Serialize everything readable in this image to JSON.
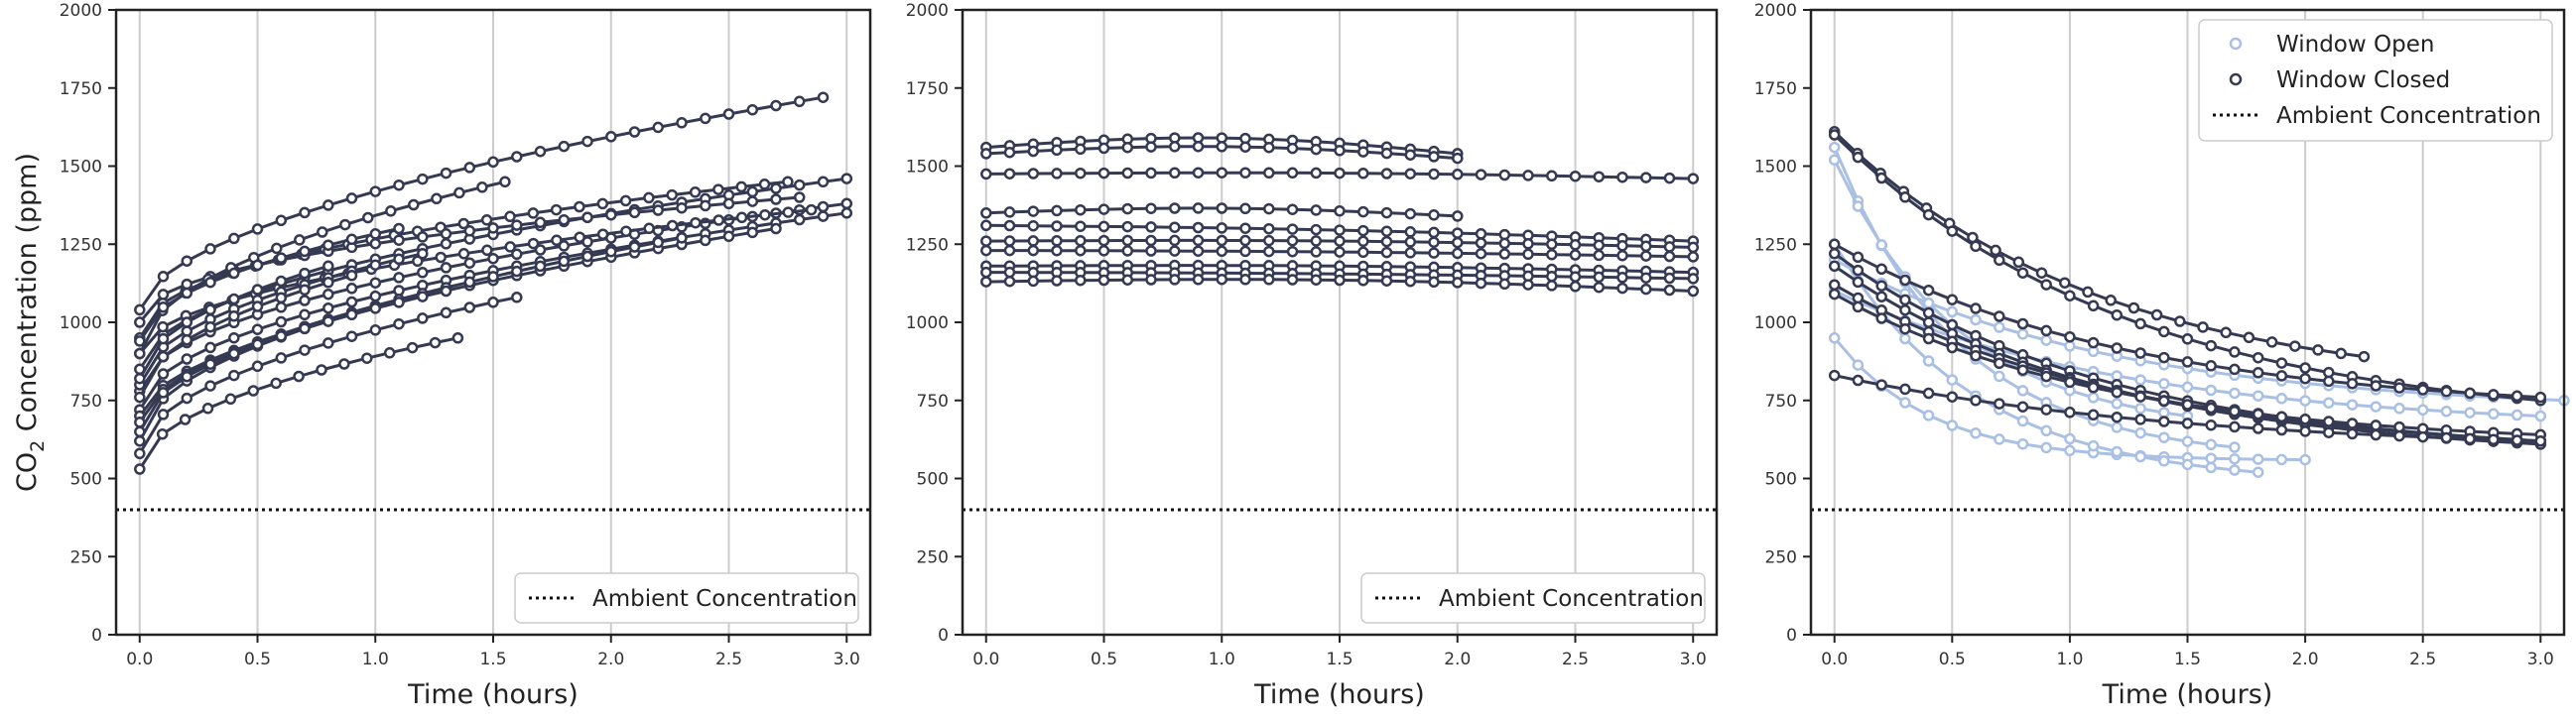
{
  "colors": {
    "closed": "#353a52",
    "open": "#a9c0e4",
    "ambient": "#111111",
    "grid": "#cccccc",
    "frame": "#222222"
  },
  "chart_data": [
    {
      "type": "line",
      "xlabel": "Time (hours)",
      "ylabel": "CO2 Concentration (ppm)",
      "ylabel_parts": {
        "pre": "CO",
        "sub": "2",
        "post": " Concentration (ppm)"
      },
      "xlim": [
        -0.1,
        3.1
      ],
      "ylim": [
        0,
        2000
      ],
      "xticks": [
        "0.0",
        "0.5",
        "1.0",
        "1.5",
        "2.0",
        "2.5",
        "3.0"
      ],
      "yticks": [
        "0",
        "250",
        "500",
        "750",
        "1000",
        "1250",
        "1500",
        "1750",
        "2000"
      ],
      "grid": "vertical",
      "ambient": 400,
      "legend": {
        "position": "lower-right",
        "entries": [
          {
            "label": "Ambient Concentration",
            "style": "dotted"
          }
        ]
      },
      "series": [
        {
          "group": "closed",
          "x0": 0,
          "dur": 2.9,
          "y0": 1040,
          "y1": 1720,
          "shape": 0.55
        },
        {
          "group": "closed",
          "x0": 0,
          "dur": 3.0,
          "y0": 850,
          "y1": 1460,
          "shape": 0.5
        },
        {
          "group": "closed",
          "x0": 0,
          "dur": 2.75,
          "y0": 950,
          "y1": 1450,
          "shape": 0.45
        },
        {
          "group": "closed",
          "x0": 0,
          "dur": 3.0,
          "y0": 780,
          "y1": 1380,
          "shape": 0.5
        },
        {
          "group": "closed",
          "x0": 0,
          "dur": 3.0,
          "y0": 720,
          "y1": 1350,
          "shape": 0.5
        },
        {
          "group": "closed",
          "x0": 0,
          "dur": 2.8,
          "y0": 1000,
          "y1": 1400,
          "shape": 0.45
        },
        {
          "group": "closed",
          "x0": 0,
          "dur": 2.85,
          "y0": 900,
          "y1": 1360,
          "shape": 0.5
        },
        {
          "group": "closed",
          "x0": 0,
          "dur": 2.7,
          "y0": 700,
          "y1": 1300,
          "shape": 0.55
        },
        {
          "group": "closed",
          "x0": 0,
          "dur": 2.3,
          "y0": 680,
          "y1": 1270,
          "shape": 0.55
        },
        {
          "group": "closed",
          "x0": 0,
          "dur": 1.55,
          "y0": 900,
          "y1": 1450,
          "shape": 0.5
        },
        {
          "group": "closed",
          "x0": 0,
          "dur": 1.6,
          "y0": 580,
          "y1": 1080,
          "shape": 0.5
        },
        {
          "group": "closed",
          "x0": 0,
          "dur": 1.35,
          "y0": 530,
          "y1": 950,
          "shape": 0.5
        },
        {
          "group": "closed",
          "x0": 0,
          "dur": 1.2,
          "y0": 800,
          "y1": 1220,
          "shape": 0.5
        },
        {
          "group": "closed",
          "x0": 0,
          "dur": 1.0,
          "y0": 620,
          "y1": 1050,
          "shape": 0.5
        },
        {
          "group": "closed",
          "x0": 0,
          "dur": 0.9,
          "y0": 760,
          "y1": 1150,
          "shape": 0.5
        },
        {
          "group": "closed",
          "x0": 0,
          "dur": 1.1,
          "y0": 940,
          "y1": 1300,
          "shape": 0.5
        },
        {
          "group": "closed",
          "x0": 0,
          "dur": 0.8,
          "y0": 820,
          "y1": 1180,
          "shape": 0.5
        },
        {
          "group": "closed",
          "x0": 0,
          "dur": 1.3,
          "y0": 650,
          "y1": 1100,
          "shape": 0.5
        }
      ]
    },
    {
      "type": "line",
      "xlabel": "Time (hours)",
      "ylabel": "",
      "xlim": [
        -0.1,
        3.1
      ],
      "ylim": [
        0,
        2000
      ],
      "xticks": [
        "0.0",
        "0.5",
        "1.0",
        "1.5",
        "2.0",
        "2.5",
        "3.0"
      ],
      "yticks": [
        "0",
        "250",
        "500",
        "750",
        "1000",
        "1250",
        "1500",
        "1750",
        "2000"
      ],
      "grid": "vertical",
      "ambient": 400,
      "legend": {
        "position": "lower-right",
        "entries": [
          {
            "label": "Ambient Concentration",
            "style": "dotted"
          }
        ]
      },
      "series": [
        {
          "group": "closed",
          "x0": 0,
          "dur": 2.0,
          "y0": 1560,
          "y1": 1540,
          "bump": 40,
          "shape": 1
        },
        {
          "group": "closed",
          "x0": 0,
          "dur": 2.0,
          "y0": 1540,
          "y1": 1525,
          "bump": 30,
          "shape": 1
        },
        {
          "group": "closed",
          "x0": 0,
          "dur": 3.0,
          "y0": 1475,
          "y1": 1460,
          "bump": 10,
          "shape": 1
        },
        {
          "group": "closed",
          "x0": 0,
          "dur": 2.0,
          "y0": 1350,
          "y1": 1340,
          "bump": 20,
          "shape": 1
        },
        {
          "group": "closed",
          "x0": 0,
          "dur": 3.0,
          "y0": 1310,
          "y1": 1260,
          "bump": 10,
          "shape": 1
        },
        {
          "group": "closed",
          "x0": 0,
          "dur": 3.0,
          "y0": 1260,
          "y1": 1240,
          "bump": 10,
          "shape": 1
        },
        {
          "group": "closed",
          "x0": 0,
          "dur": 3.0,
          "y0": 1230,
          "y1": 1210,
          "bump": 5,
          "shape": 1
        },
        {
          "group": "closed",
          "x0": 0,
          "dur": 3.0,
          "y0": 1180,
          "y1": 1160,
          "bump": 10,
          "shape": 1
        },
        {
          "group": "closed",
          "x0": 0,
          "dur": 3.0,
          "y0": 1160,
          "y1": 1140,
          "bump": 5,
          "shape": 1
        },
        {
          "group": "closed",
          "x0": 0,
          "dur": 3.0,
          "y0": 1130,
          "y1": 1100,
          "bump": 20,
          "shape": 1
        }
      ]
    },
    {
      "type": "line",
      "xlabel": "Time (hours)",
      "ylabel": "",
      "xlim": [
        -0.1,
        3.1
      ],
      "ylim": [
        0,
        2000
      ],
      "xticks": [
        "0.0",
        "0.5",
        "1.0",
        "1.5",
        "2.0",
        "2.5",
        "3.0"
      ],
      "yticks": [
        "0",
        "250",
        "500",
        "750",
        "1000",
        "1250",
        "1500",
        "1750",
        "2000"
      ],
      "grid": "vertical",
      "ambient": 400,
      "legend": {
        "position": "top-right",
        "entries": [
          {
            "label": "Window Open",
            "style": "marker-open"
          },
          {
            "label": "Window Closed",
            "style": "marker-closed"
          },
          {
            "label": "Ambient Concentration",
            "style": "dotted"
          }
        ]
      },
      "series": [
        {
          "group": "open",
          "x0": 0,
          "dur": 1.7,
          "y0": 1560,
          "y1": 600,
          "shape": 1.6
        },
        {
          "group": "open",
          "x0": 0,
          "dur": 1.5,
          "y0": 1520,
          "y1": 700,
          "shape": 1.4
        },
        {
          "group": "open",
          "x0": 0,
          "dur": 2.0,
          "y0": 950,
          "y1": 560,
          "shape": 2.5
        },
        {
          "group": "open",
          "x0": 0,
          "dur": 1.8,
          "y0": 1250,
          "y1": 520,
          "shape": 1.5
        },
        {
          "group": "open",
          "x0": 0,
          "dur": 3.1,
          "y0": 1200,
          "y1": 750,
          "shape": 1.3
        },
        {
          "group": "open",
          "x0": 0,
          "dur": 3.0,
          "y0": 1100,
          "y1": 700,
          "shape": 1.2
        },
        {
          "group": "closed",
          "x0": 0,
          "dur": 2.25,
          "y0": 1610,
          "y1": 890,
          "shape": 1.0
        },
        {
          "group": "closed",
          "x0": 0,
          "dur": 3.0,
          "y0": 1600,
          "y1": 750,
          "shape": 1.2
        },
        {
          "group": "closed",
          "x0": 0,
          "dur": 3.0,
          "y0": 1250,
          "y1": 760,
          "shape": 1.2
        },
        {
          "group": "closed",
          "x0": 0,
          "dur": 3.0,
          "y0": 1220,
          "y1": 620,
          "shape": 1.3
        },
        {
          "group": "closed",
          "x0": 0,
          "dur": 3.0,
          "y0": 1180,
          "y1": 610,
          "shape": 1.3
        },
        {
          "group": "closed",
          "x0": 0,
          "dur": 3.0,
          "y0": 1120,
          "y1": 620,
          "shape": 1.2
        },
        {
          "group": "closed",
          "x0": 0,
          "dur": 3.0,
          "y0": 1090,
          "y1": 640,
          "shape": 1.3
        },
        {
          "group": "closed",
          "x0": 0,
          "dur": 3.0,
          "y0": 830,
          "y1": 620,
          "shape": 1.0
        }
      ]
    }
  ]
}
